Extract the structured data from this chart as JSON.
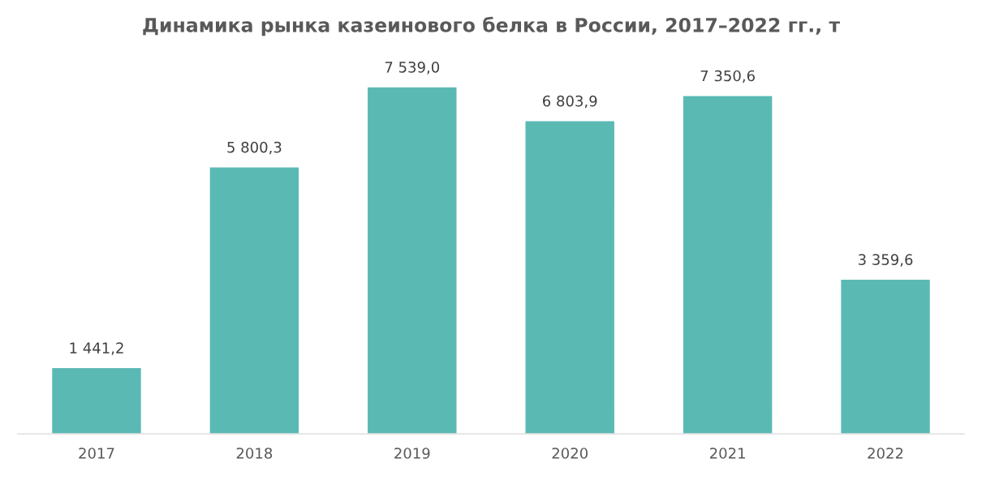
{
  "chart_data": {
    "type": "bar",
    "title": "Динамика рынка казеинового белка в России, 2017–2022 гг., т",
    "categories": [
      "2017",
      "2018",
      "2019",
      "2020",
      "2021",
      "2022"
    ],
    "values": [
      1441.2,
      5800.3,
      7539.0,
      6803.9,
      7350.6,
      3359.6
    ],
    "value_labels": [
      "1 441,2",
      "5 800,3",
      "7 539,0",
      "6 803,9",
      "7 350,6",
      "3 359,6"
    ],
    "color": "#5bb9b4",
    "grid": false,
    "legend": false,
    "tick_labels": "x"
  }
}
